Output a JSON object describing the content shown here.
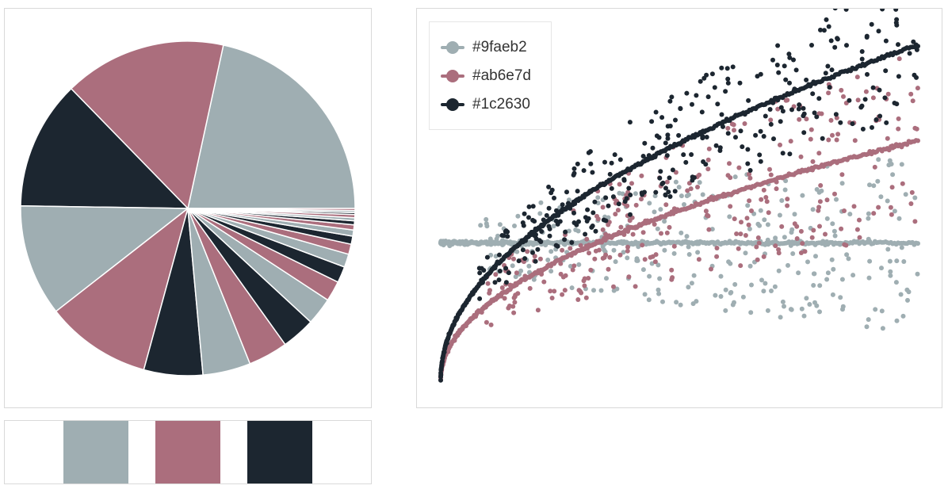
{
  "colors": {
    "gray": "#9faeb2",
    "rose": "#ab6e7d",
    "dark": "#1c2630"
  },
  "chart_data": [
    {
      "type": "pie",
      "slices": [
        {
          "value": 22.0,
          "color": "#9faeb2"
        },
        {
          "value": 16.0,
          "color": "#ab6e7d"
        },
        {
          "value": 12.7,
          "color": "#1c2630"
        },
        {
          "value": 11.0,
          "color": "#9faeb2"
        },
        {
          "value": 10.4,
          "color": "#ab6e7d"
        },
        {
          "value": 5.8,
          "color": "#1c2630"
        },
        {
          "value": 4.7,
          "color": "#9faeb2"
        },
        {
          "value": 3.9,
          "color": "#ab6e7d"
        },
        {
          "value": 3.3,
          "color": "#1c2630"
        },
        {
          "value": 2.7,
          "color": "#9faeb2"
        },
        {
          "value": 2.0,
          "color": "#ab6e7d"
        },
        {
          "value": 1.6,
          "color": "#1c2630"
        },
        {
          "value": 1.3,
          "color": "#9faeb2"
        },
        {
          "value": 1.0,
          "color": "#ab6e7d"
        },
        {
          "value": 0.8,
          "color": "#1c2630"
        },
        {
          "value": 0.6,
          "color": "#9faeb2"
        },
        {
          "value": 0.5,
          "color": "#ab6e7d"
        },
        {
          "value": 0.4,
          "color": "#1c2630"
        },
        {
          "value": 0.3,
          "color": "#9faeb2"
        },
        {
          "value": 0.3,
          "color": "#ab6e7d"
        },
        {
          "value": 0.2,
          "color": "#1c2630"
        },
        {
          "value": 0.2,
          "color": "#9faeb2"
        },
        {
          "value": 0.2,
          "color": "#ab6e7d"
        }
      ]
    },
    {
      "type": "scatter",
      "xlim": [
        0,
        1
      ],
      "ylim": [
        -1.1,
        1.6
      ],
      "grid": false,
      "legend_position": "top-left",
      "series": [
        {
          "name": "#9faeb2",
          "color": "#9faeb2",
          "trend": "flat",
          "level": 0.0,
          "spread": 0.65
        },
        {
          "name": "#ab6e7d",
          "color": "#ab6e7d",
          "trend": "sqrt",
          "level": 0.75,
          "spread": 0.7
        },
        {
          "name": "#1c2630",
          "color": "#1c2630",
          "trend": "sqrt",
          "level": 1.45,
          "spread": 0.55
        }
      ]
    }
  ],
  "swatches": [
    "#9faeb2",
    "#ab6e7d",
    "#1c2630"
  ]
}
